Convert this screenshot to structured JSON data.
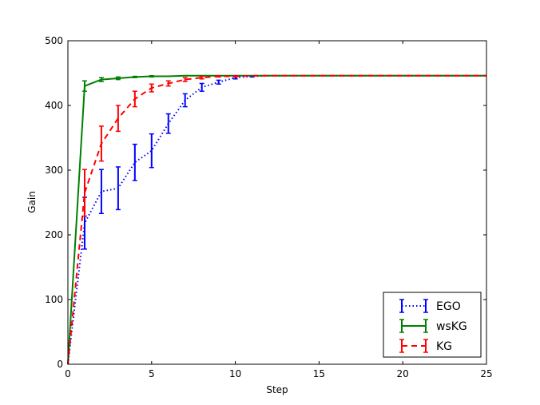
{
  "chart_data": {
    "type": "line",
    "title": "",
    "xlabel": "Step",
    "ylabel": "Gain",
    "xlim": [
      0,
      25
    ],
    "ylim": [
      0,
      500
    ],
    "xticks": [
      0,
      5,
      10,
      15,
      20,
      25
    ],
    "yticks": [
      0,
      100,
      200,
      300,
      400,
      500
    ],
    "grid": false,
    "legend_position": "lower right",
    "series": [
      {
        "name": "EGO",
        "color": "#0000ff",
        "line_style": "dotted",
        "x": [
          0,
          1,
          2,
          3,
          4,
          5,
          6,
          7,
          8,
          9,
          10,
          11,
          12,
          13,
          14,
          15,
          16,
          17,
          18,
          19,
          20,
          21,
          22,
          23,
          24,
          25
        ],
        "values": [
          0,
          218,
          267,
          272,
          312,
          330,
          372,
          408,
          428,
          436,
          443,
          445,
          446,
          446,
          446,
          446,
          446,
          446,
          446,
          446,
          446,
          446,
          446,
          446,
          446,
          446
        ],
        "errors": [
          0,
          40,
          34,
          33,
          28,
          26,
          15,
          10,
          6,
          3,
          2,
          1,
          0,
          0,
          0,
          0,
          0,
          0,
          0,
          0,
          0,
          0,
          0,
          0,
          0,
          0
        ]
      },
      {
        "name": "wsKG",
        "color": "#008000",
        "line_style": "solid",
        "x": [
          0,
          1,
          2,
          3,
          4,
          5,
          6,
          7,
          8,
          9,
          10,
          11,
          12,
          13,
          14,
          15,
          16,
          17,
          18,
          19,
          20,
          21,
          22,
          23,
          24,
          25
        ],
        "values": [
          0,
          430,
          440,
          442,
          444,
          445,
          445,
          446,
          446,
          446,
          446,
          446,
          446,
          446,
          446,
          446,
          446,
          446,
          446,
          446,
          446,
          446,
          446,
          446,
          446,
          446
        ],
        "errors": [
          0,
          8,
          3,
          2,
          1,
          1,
          0,
          0,
          0,
          0,
          0,
          0,
          0,
          0,
          0,
          0,
          0,
          0,
          0,
          0,
          0,
          0,
          0,
          0,
          0,
          0
        ]
      },
      {
        "name": "KG",
        "color": "#ff0000",
        "line_style": "dashed",
        "x": [
          0,
          1,
          2,
          3,
          4,
          5,
          6,
          7,
          8,
          9,
          10,
          11,
          12,
          13,
          14,
          15,
          16,
          17,
          18,
          19,
          20,
          21,
          22,
          23,
          24,
          25
        ],
        "values": [
          0,
          265,
          341,
          380,
          410,
          427,
          434,
          440,
          443,
          445,
          445,
          446,
          446,
          446,
          446,
          446,
          446,
          446,
          446,
          446,
          446,
          446,
          446,
          446,
          446,
          446
        ],
        "errors": [
          0,
          36,
          27,
          20,
          12,
          6,
          4,
          3,
          2,
          1,
          1,
          0,
          0,
          0,
          0,
          0,
          0,
          0,
          0,
          0,
          0,
          0,
          0,
          0,
          0,
          0
        ]
      }
    ]
  }
}
